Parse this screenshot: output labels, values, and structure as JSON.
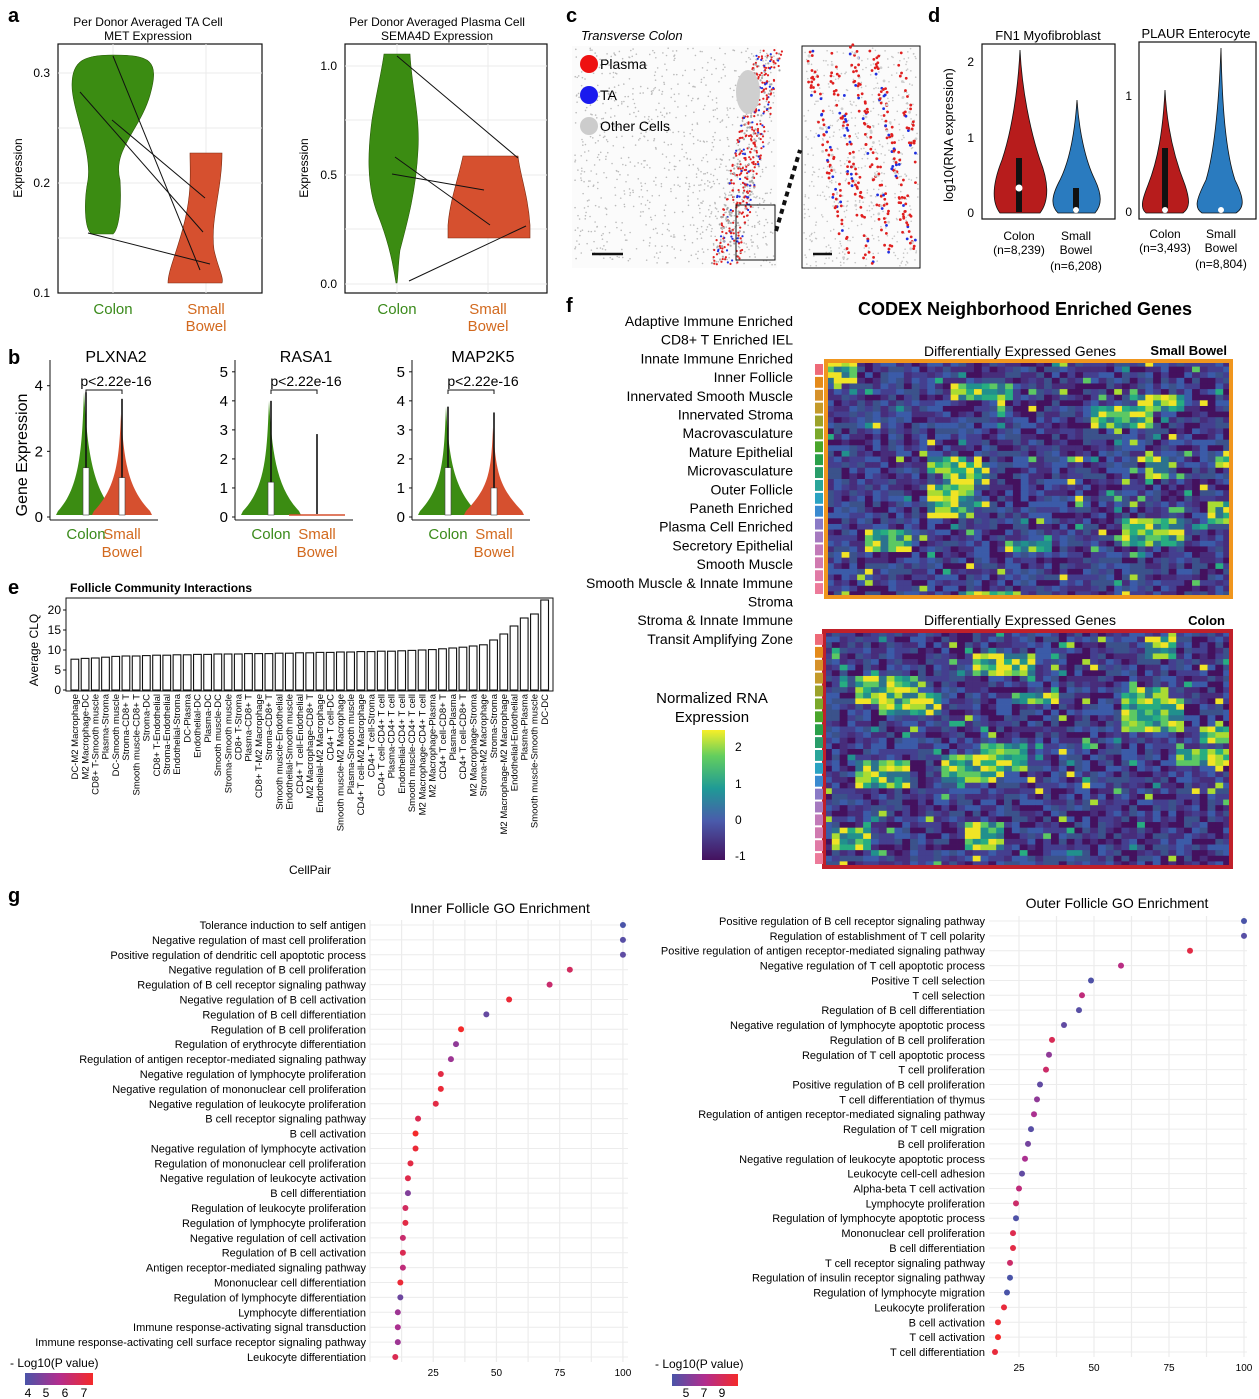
{
  "panels": {
    "a": {
      "label": "a",
      "left": {
        "title": [
          "Per Donor Averaged TA Cell",
          "MET Expression"
        ],
        "ylabel": "Expression",
        "yticks": [
          "0.3",
          "0.2",
          "0.1"
        ],
        "categories": [
          "Colon",
          [
            "Small",
            "Bowel"
          ]
        ]
      },
      "right": {
        "title": [
          "Per Donor Averaged Plasma Cell",
          "SEMA4D Expression"
        ],
        "ylabel": "Expression",
        "yticks": [
          "1.0",
          "0.5",
          "0.0"
        ],
        "categories": [
          "Colon",
          [
            "Small",
            "Bowel"
          ]
        ]
      }
    },
    "b": {
      "label": "b",
      "ylabel": "Gene Expression",
      "plots": [
        {
          "gene": "PLXNA2",
          "p": "p<2.22e-16",
          "yticks": [
            "4",
            "2",
            "0"
          ]
        },
        {
          "gene": "RASA1",
          "p": "p<2.22e-16",
          "yticks": [
            "5",
            "4",
            "3",
            "2",
            "1",
            "0"
          ]
        },
        {
          "gene": "MAP2K5",
          "p": "p<2.22e-16",
          "yticks": [
            "5",
            "4",
            "3",
            "2",
            "1",
            "0"
          ]
        }
      ],
      "categories": [
        "Colon",
        [
          "Small",
          "Bowel"
        ]
      ]
    },
    "c": {
      "label": "c",
      "title": "Transverse Colon",
      "legend": [
        {
          "name": "Plasma",
          "color": "#ee1111"
        },
        {
          "name": "TA",
          "color": "#1a1aee"
        },
        {
          "name": "Other Cells",
          "color": "#cccccc"
        }
      ]
    },
    "d": {
      "label": "d",
      "ylabel": "log10(RNA expression)",
      "left": {
        "title": "FN1 Myofibroblast",
        "yticks": [
          "2",
          "1",
          "0"
        ],
        "cats": [
          [
            "Colon",
            "(n=8,239)"
          ],
          [
            "Small",
            "Bowel",
            "(n=6,208)"
          ]
        ]
      },
      "right": {
        "title": "PLAUR Enterocyte",
        "yticks": [
          "1",
          "0"
        ],
        "cats": [
          [
            "Colon",
            "(n=3,493)"
          ],
          [
            "Small",
            "Bowel",
            "(n=8,804)"
          ]
        ]
      }
    },
    "e": {
      "label": "e",
      "title": "Follicle Community Interactions",
      "ylabel": "Average CLQ",
      "xlabel": "CellPair",
      "yticks": [
        "20",
        "15",
        "10",
        "5",
        "0"
      ]
    },
    "f": {
      "label": "f",
      "title": "CODEX Neighborhood Enriched Genes",
      "sb_header": "Differentially Expressed Genes",
      "sb_tissue": "Small Bowel",
      "colon_header": "Differentially Expressed Genes",
      "colon_tissue": "Colon",
      "neighborhoods": [
        "Adaptive Immune Enriched",
        "CD8+ T Enriched IEL",
        "Innate Immune Enriched",
        "Inner Follicle",
        "Innervated Smooth Muscle",
        "Innervated Stroma",
        "Macrovasculature",
        "Mature Epithelial",
        "Microvasculature",
        "Outer Follicle",
        "Paneth Enriched",
        "Plasma Cell Enriched",
        "Secretory Epithelial",
        "Smooth Muscle",
        "Smooth Muscle & Innate Immune",
        "Stroma",
        "Stroma & Innate Immune",
        "Transit Amplifying Zone"
      ],
      "colorbar_title": [
        "Normalized RNA",
        "Expression"
      ],
      "colorbar_ticks": [
        "2",
        "1",
        "0",
        "-1"
      ]
    },
    "g": {
      "label": "g",
      "left_title": "Inner Follicle GO Enrichment",
      "right_title": "Outer Follicle GO Enrichment",
      "legend_title": "- Log10(P value)",
      "left_legend_ticks": [
        "4",
        "5",
        "6",
        "7"
      ],
      "right_legend_ticks": [
        "5",
        "7",
        "9"
      ],
      "left_xticks": [
        "25",
        "50",
        "75",
        "100"
      ],
      "right_xticks": [
        "25",
        "50",
        "75",
        "100"
      ]
    }
  },
  "chart_data": [
    {
      "id": "e",
      "type": "bar",
      "title": "Follicle Community Interactions",
      "xlabel": "CellPair",
      "ylabel": "Average CLQ",
      "ylim": [
        0,
        23
      ],
      "categories": [
        "DC-M2 Macrophage",
        "M2 Macrophage-DC",
        "CD8+ T-Smooth muscle",
        "Plasma-Stroma",
        "DC-Smooth muscle",
        "Stroma-CD8+ T",
        "Smooth muscle-CD8+ T",
        "Stroma-DC",
        "CD8+ T-Endothelial",
        "Stroma-Endothelial",
        "Endothelial-Stroma",
        "DC-Plasma",
        "Endothelial-DC",
        "Plasma-DC",
        "Smooth muscle-DC",
        "Stroma-Smooth muscle",
        "CD8+ T-Stroma",
        "Plasma-CD8+ T",
        "CD8+ T-M2 Macrophage",
        "Stroma-CD8+ T",
        "Smooth muscle-Endothelial",
        "Endothelial-Smooth muscle",
        "CD4+ T cell-Endothelial",
        "M2 Macrophage-CD8+ T",
        "Endothelial-M2 Macrophage",
        "CD4+ T cell-DC",
        "Smooth muscle-M2 Macrophage",
        "Plasma-Smooth muscle",
        "CD4+ T cell-M2 Macrophage",
        "CD4+ T cell-Stroma",
        "CD4+ T cell-CD4+ T cell",
        "Plasma-CD4+ T cell",
        "Endothelial-CD4+ T cell",
        "Smooth muscle-CD4+ T cell",
        "M2 Macrophage-CD4+ T cell",
        "M2 Macrophage-Plasma",
        "CD4+ T cell-CD8+ T",
        "Plasma-Plasma",
        "CD4+ T cell-CD8+ T",
        "M2 Macrophage-Stroma",
        "Stroma-M2 Macrophage",
        "Stroma-Stroma",
        "M2 Macrophage-M2 Macrophage",
        "Endothelial-Endothelial",
        "Plasma-Plasma",
        "Smooth muscle-Smooth muscle",
        "DC-DC"
      ],
      "values": [
        7.7,
        7.9,
        8.0,
        8.2,
        8.4,
        8.5,
        8.5,
        8.6,
        8.7,
        8.7,
        8.8,
        8.8,
        8.9,
        8.9,
        9.0,
        9.0,
        9.0,
        9.1,
        9.1,
        9.1,
        9.2,
        9.2,
        9.3,
        9.3,
        9.4,
        9.4,
        9.5,
        9.5,
        9.6,
        9.6,
        9.7,
        9.7,
        9.8,
        9.9,
        10.0,
        10.1,
        10.3,
        10.5,
        10.7,
        11.0,
        11.3,
        12.5,
        14.0,
        16.0,
        18.0,
        19.0,
        22.5
      ]
    },
    {
      "id": "g-inner",
      "type": "scatter",
      "title": "Inner Follicle GO Enrichment",
      "xlim": [
        0,
        102
      ],
      "terms": [
        "Tolerance induction to self antigen",
        "Negative regulation of mast cell proliferation",
        "Positive regulation of dendritic cell apoptotic process",
        "Negative regulation of B cell proliferation",
        "Regulation of B cell receptor signaling pathway",
        "Negative regulation of B cell activation",
        "Regulation of B cell differentiation",
        "Regulation of B cell proliferation",
        "Regulation of erythrocyte differentiation",
        "Regulation of antigen receptor-mediated signaling pathway",
        "Negative regulation of lymphocyte proliferation",
        "Negative regulation of mononuclear cell proliferation",
        "Negative regulation of leukocyte proliferation",
        "B cell receptor signaling pathway",
        "B cell activation",
        "Negative regulation of lymphocyte activation",
        "Regulation of mononuclear cell proliferation",
        "Negative regulation of leukocyte activation",
        "B cell differentiation",
        "Regulation of leukocyte proliferation",
        "Regulation of lymphocyte proliferation",
        "Negative regulation of cell activation",
        "Regulation of B cell activation",
        "Antigen receptor-mediated signaling pathway",
        "Mononuclear cell differentiation",
        "Regulation of lymphocyte differentiation",
        "Lymphocyte differentiation",
        "Immune response-activating signal transduction",
        "Immune response-activating cell surface receptor signaling pathway",
        "Leukocyte differentiation"
      ],
      "x": [
        100,
        100,
        100,
        79,
        71,
        55,
        46,
        36,
        34,
        32,
        28,
        28,
        26,
        19,
        18,
        18,
        16,
        15,
        15,
        14,
        14,
        13,
        13,
        13,
        12,
        12,
        11,
        11,
        11,
        10
      ],
      "color_values": [
        4.0,
        4.2,
        4.3,
        6.2,
        6.0,
        6.8,
        4.4,
        7.0,
        5.0,
        5.2,
        6.6,
        6.8,
        6.6,
        6.4,
        7.0,
        6.8,
        6.6,
        6.5,
        4.8,
        6.2,
        6.6,
        6.0,
        6.4,
        5.8,
        6.8,
        4.5,
        5.2,
        5.4,
        5.2,
        6.4
      ]
    },
    {
      "id": "g-outer",
      "type": "scatter",
      "title": "Outer Follicle GO Enrichment",
      "xlim": [
        15,
        101
      ],
      "terms": [
        "Positive regulation of B cell receptor signaling pathway",
        "Regulation of establishment of T cell polarity",
        "Positive regulation of antigen receptor-mediated signaling pathway",
        "Negative regulation of T cell apoptotic process",
        "Positive T cell selection",
        "T cell selection",
        "Regulation of B cell differentiation",
        "Negative regulation of lymphocyte apoptotic process",
        "Regulation of B cell proliferation",
        "Regulation of T cell apoptotic process",
        "T cell proliferation",
        "Positive regulation of B cell proliferation",
        "T cell differentiation of thymus",
        "Regulation of antigen receptor-mediated signaling pathway",
        "Regulation of T cell migration",
        "B cell proliferation",
        "Negative regulation of leukocyte apoptotic process",
        "Leukocyte cell-cell adhesion",
        "Alpha-beta T cell activation",
        "Lymphocyte proliferation",
        "Regulation of lymphocyte apoptotic process",
        "Mononuclear cell proliferation",
        "B cell differentiation",
        "T cell receptor signaling pathway",
        "Regulation of insulin receptor signaling pathway",
        "Regulation of lymphocyte migration",
        "Leukocyte proliferation",
        "B cell activation",
        "T cell activation",
        "T cell differentiation"
      ],
      "x": [
        100,
        100,
        82,
        59,
        49,
        46,
        45,
        40,
        36,
        35,
        34,
        32,
        31,
        30,
        29,
        28,
        27,
        26,
        25,
        24,
        24,
        23,
        23,
        22,
        22,
        21,
        20,
        18,
        18,
        17
      ],
      "color_values": [
        4.5,
        4.8,
        8.4,
        7.0,
        4.6,
        7.2,
        4.8,
        5.0,
        8.0,
        6.0,
        7.6,
        5.0,
        6.0,
        6.6,
        4.8,
        5.4,
        6.6,
        5.0,
        7.2,
        7.6,
        4.6,
        8.2,
        8.4,
        7.6,
        4.4,
        4.4,
        8.6,
        8.8,
        9.0,
        8.6
      ]
    }
  ]
}
